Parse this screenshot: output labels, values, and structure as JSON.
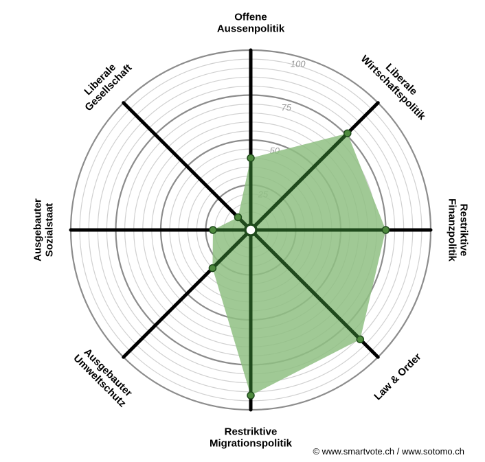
{
  "chart_data": {
    "type": "radar",
    "rlim": [
      0,
      100
    ],
    "ticks": [
      25,
      50,
      75,
      100
    ],
    "axes": [
      {
        "label": [
          "Offene",
          "Aussenpolitik"
        ],
        "value": 40
      },
      {
        "label": [
          "Liberale",
          "Wirtschaftspolitik"
        ],
        "value": 76
      },
      {
        "label": [
          "Restriktive",
          "Finanzpolitik"
        ],
        "value": 75
      },
      {
        "label": [
          "Law & Order"
        ],
        "value": 86
      },
      {
        "label": [
          "Restriktive",
          "Migrationspolitik"
        ],
        "value": 92
      },
      {
        "label": [
          "Ausgebauter",
          "Umweltschutz"
        ],
        "value": 30
      },
      {
        "label": [
          "Ausgebauter",
          "Sozialstaat"
        ],
        "value": 21
      },
      {
        "label": [
          "Liberale",
          "Gesellschaft"
        ],
        "value": 10
      }
    ],
    "colors": {
      "fill": "#8fbf82",
      "axis_filled": "#1f4a1c",
      "axis": "#000000",
      "point": "#4e8a3e",
      "ring_major": "#8c8c8c",
      "ring_minor": "#d0d0d0"
    }
  },
  "credit": "© www.smartvote.ch / www.sotomo.ch"
}
